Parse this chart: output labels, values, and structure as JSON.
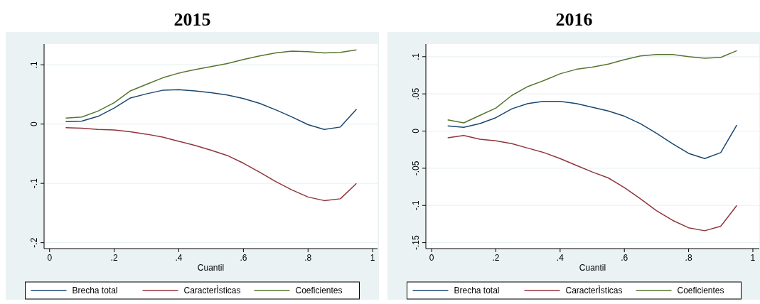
{
  "chart_data": [
    {
      "type": "line",
      "title": "2015",
      "xlabel": "Cuantil",
      "x": [
        0.05,
        0.1,
        0.15,
        0.2,
        0.25,
        0.3,
        0.35,
        0.4,
        0.45,
        0.5,
        0.55,
        0.6,
        0.65,
        0.7,
        0.75,
        0.8,
        0.85,
        0.9,
        0.95
      ],
      "series": [
        {
          "name": "Brecha total",
          "color": "#1a476f",
          "values": [
            0.004,
            0.005,
            0.013,
            0.027,
            0.044,
            0.051,
            0.057,
            0.058,
            0.056,
            0.053,
            0.049,
            0.043,
            0.035,
            0.024,
            0.012,
            -0.001,
            -0.009,
            -0.005,
            0.025
          ]
        },
        {
          "name": "CaracterÌsticas",
          "color": "#90353b",
          "values": [
            -0.006,
            -0.007,
            -0.009,
            -0.01,
            -0.013,
            -0.017,
            -0.022,
            -0.029,
            -0.036,
            -0.044,
            -0.053,
            -0.066,
            -0.081,
            -0.097,
            -0.111,
            -0.123,
            -0.129,
            -0.126,
            -0.1
          ]
        },
        {
          "name": "Coeficientes",
          "color": "#55752f",
          "values": [
            0.01,
            0.012,
            0.022,
            0.036,
            0.056,
            0.067,
            0.078,
            0.086,
            0.092,
            0.097,
            0.102,
            0.109,
            0.115,
            0.12,
            0.123,
            0.122,
            0.12,
            0.121,
            0.125
          ]
        }
      ],
      "xlim": [
        -0.017,
        1.015
      ],
      "xticks": [
        {
          "value": 0,
          "label": "0"
        },
        {
          "value": 0.2,
          "label": ".2"
        },
        {
          "value": 0.4,
          "label": ".4"
        },
        {
          "value": 0.6,
          "label": ".6"
        },
        {
          "value": 0.8,
          "label": ".8"
        },
        {
          "value": 1,
          "label": "1"
        }
      ],
      "ylim": [
        -0.21,
        0.135
      ],
      "yticks": [
        {
          "value": -0.2,
          "label": "-.2"
        },
        {
          "value": -0.1,
          "label": "-.1"
        },
        {
          "value": 0,
          "label": "0"
        },
        {
          "value": 0.1,
          "label": ".1"
        }
      ],
      "grid": "y",
      "legend": "bottom",
      "line_style": "solid",
      "marker": "none"
    },
    {
      "type": "line",
      "title": "2016",
      "xlabel": "Cuantil",
      "x": [
        0.05,
        0.1,
        0.15,
        0.2,
        0.25,
        0.3,
        0.35,
        0.4,
        0.45,
        0.5,
        0.55,
        0.6,
        0.65,
        0.7,
        0.75,
        0.8,
        0.85,
        0.9,
        0.95
      ],
      "series": [
        {
          "name": "Brecha total",
          "color": "#1a476f",
          "values": [
            0.007,
            0.005,
            0.01,
            0.018,
            0.03,
            0.037,
            0.04,
            0.04,
            0.037,
            0.032,
            0.027,
            0.02,
            0.01,
            -0.003,
            -0.017,
            -0.03,
            -0.037,
            -0.029,
            0.008
          ]
        },
        {
          "name": "CaracterÌsticas",
          "color": "#90353b",
          "values": [
            -0.009,
            -0.006,
            -0.011,
            -0.013,
            -0.017,
            -0.023,
            -0.029,
            -0.037,
            -0.046,
            -0.055,
            -0.063,
            -0.076,
            -0.091,
            -0.107,
            -0.12,
            -0.13,
            -0.134,
            -0.128,
            -0.1
          ]
        },
        {
          "name": "Coeficientes",
          "color": "#55752f",
          "values": [
            0.015,
            0.011,
            0.021,
            0.031,
            0.048,
            0.06,
            0.068,
            0.077,
            0.083,
            0.086,
            0.09,
            0.096,
            0.101,
            0.103,
            0.103,
            0.1,
            0.098,
            0.099,
            0.108
          ]
        }
      ],
      "xlim": [
        -0.018,
        1.02
      ],
      "xticks": [
        {
          "value": 0,
          "label": "0"
        },
        {
          "value": 0.2,
          "label": ".2"
        },
        {
          "value": 0.4,
          "label": ".4"
        },
        {
          "value": 0.6,
          "label": ".6"
        },
        {
          "value": 0.8,
          "label": ".8"
        },
        {
          "value": 1,
          "label": "1"
        }
      ],
      "ylim": [
        -0.158,
        0.117
      ],
      "yticks": [
        {
          "value": -0.15,
          "label": "-.15"
        },
        {
          "value": -0.1,
          "label": "-.1"
        },
        {
          "value": -0.05,
          "label": "-.05"
        },
        {
          "value": 0,
          "label": "0"
        },
        {
          "value": 0.05,
          "label": ".05"
        },
        {
          "value": 0.1,
          "label": ".1"
        }
      ],
      "grid": "y",
      "legend": "bottom",
      "line_style": "solid",
      "marker": "none"
    }
  ]
}
